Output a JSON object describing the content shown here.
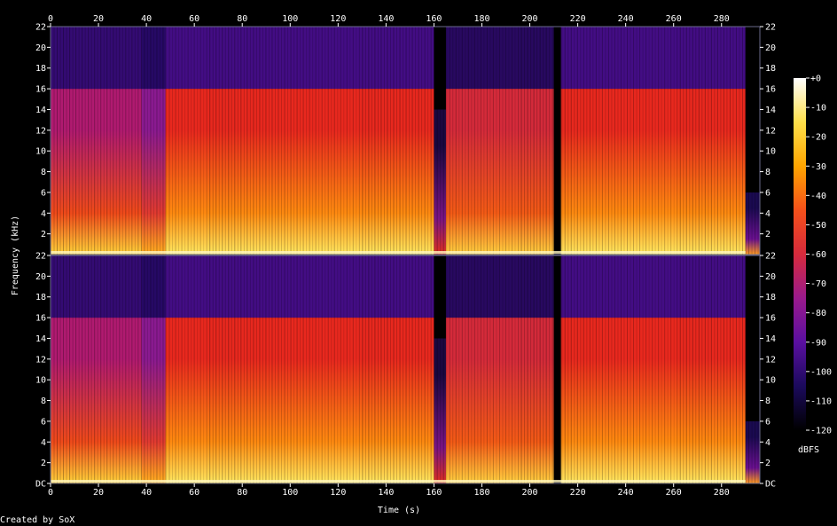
{
  "chart_data": {
    "type": "heatmap",
    "subtype": "spectrogram",
    "channels": [
      {
        "name": "",
        "freq_range_khz": [
          0,
          22
        ]
      },
      {
        "name": "",
        "freq_range_khz": [
          0,
          22
        ]
      }
    ],
    "x": {
      "label": "Time (s)",
      "range": [
        0,
        296
      ],
      "ticks": [
        0,
        20,
        40,
        60,
        80,
        100,
        120,
        140,
        160,
        180,
        200,
        220,
        240,
        260,
        280
      ]
    },
    "y": {
      "label": "Frequency (kHz)",
      "range": [
        0,
        22
      ],
      "ticks": [
        "DC",
        "2",
        "4",
        "6",
        "8",
        "10",
        "12",
        "14",
        "16",
        "18",
        "20",
        "22"
      ]
    },
    "colorbar": {
      "label": "dBFS",
      "range": [
        -120,
        0
      ],
      "ticks": [
        "+0",
        "-10",
        "-20",
        "-30",
        "-40",
        "-50",
        "-60",
        "-70",
        "-80",
        "-90",
        "-100",
        "-110",
        "-120"
      ],
      "colormap": [
        "#000000",
        "#1b0a5c",
        "#5a0fa0",
        "#9a1a8c",
        "#d62a3c",
        "#f5501a",
        "#ffa500",
        "#ffe04a",
        "#ffffff"
      ]
    },
    "segments": [
      {
        "t_start": 0,
        "t_end": 38,
        "cutoff_khz": 16,
        "level": "medium",
        "note_bands": true
      },
      {
        "t_start": 38,
        "t_end": 48,
        "cutoff_khz": 16,
        "level": "transient"
      },
      {
        "t_start": 48,
        "t_end": 160,
        "cutoff_khz": 16,
        "level": "loud"
      },
      {
        "t_start": 160,
        "t_end": 165,
        "cutoff_khz": 14,
        "level": "dip"
      },
      {
        "t_start": 165,
        "t_end": 210,
        "cutoff_khz": 16,
        "level": "medium-loud"
      },
      {
        "t_start": 210,
        "t_end": 213,
        "cutoff_khz": 0,
        "level": "silent"
      },
      {
        "t_start": 213,
        "t_end": 290,
        "cutoff_khz": 16,
        "level": "loud"
      },
      {
        "t_start": 290,
        "t_end": 296,
        "cutoff_khz": 6,
        "level": "fade"
      }
    ],
    "footer": "Created by SoX"
  }
}
